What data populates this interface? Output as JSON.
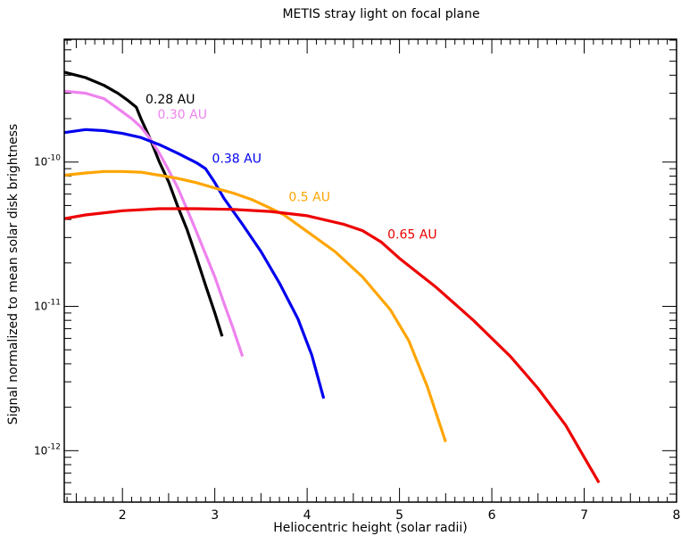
{
  "chart_data": {
    "type": "line",
    "title": "METIS stray light on focal plane",
    "xlabel": "Heliocentric height (solar radii)",
    "ylabel": "Signal normalized to mean solar disk brightness",
    "xlim": [
      1.37,
      8
    ],
    "ylim": [
      4.4e-13,
      7.1e-10
    ],
    "y_scale": "log",
    "x_ticks": [
      2,
      3,
      4,
      5,
      6,
      7,
      8
    ],
    "x_tick_labels": [
      "2",
      "3",
      "4",
      "5",
      "6",
      "7",
      "8"
    ],
    "y_ticks": [
      1e-12,
      1e-11,
      1e-10
    ],
    "y_tick_base": "10",
    "y_tick_exponents": [
      "-12",
      "-11",
      "-10"
    ],
    "grid": false,
    "legend": "none",
    "series": [
      {
        "name": "0.28 AU",
        "color": "#000000",
        "label_at": [
          2.25,
          2.55e-10
        ],
        "x": [
          1.37,
          1.6,
          1.8,
          1.95,
          2.05,
          2.15,
          2.2,
          2.3,
          2.4,
          2.5,
          2.6,
          2.7,
          2.8,
          2.9,
          3.0,
          3.08
        ],
        "y": [
          4.2e-10,
          3.85e-10,
          3.4e-10,
          3e-10,
          2.7e-10,
          2.4e-10,
          2e-10,
          1.45e-10,
          1e-10,
          7.3e-11,
          4.9e-11,
          3.4e-11,
          2.2e-11,
          1.4e-11,
          9e-12,
          6.2e-12
        ]
      },
      {
        "name": "0.30 AU",
        "color": "#ee82ee",
        "label_at": [
          2.38,
          2e-10
        ],
        "x": [
          1.37,
          1.6,
          1.8,
          1.95,
          2.1,
          2.2,
          2.3,
          2.4,
          2.5,
          2.6,
          2.7,
          2.8,
          2.9,
          3.0,
          3.1,
          3.2,
          3.3
        ],
        "y": [
          3.1e-10,
          3e-10,
          2.75e-10,
          2.35e-10,
          2e-10,
          1.75e-10,
          1.45e-10,
          1.15e-10,
          8.8e-11,
          6.6e-11,
          4.7e-11,
          3.3e-11,
          2.3e-11,
          1.6e-11,
          1.05e-11,
          7e-12,
          4.5e-12
        ]
      },
      {
        "name": "0.38 AU",
        "color": "#0000ee",
        "label_at": [
          2.97,
          9.9e-11
        ],
        "x": [
          1.37,
          1.6,
          1.8,
          2.0,
          2.2,
          2.4,
          2.6,
          2.8,
          2.9,
          3.0,
          3.1,
          3.3,
          3.5,
          3.7,
          3.9,
          4.05,
          4.18
        ],
        "y": [
          1.6e-10,
          1.68e-10,
          1.65e-10,
          1.58e-10,
          1.48e-10,
          1.32e-10,
          1.15e-10,
          9.9e-11,
          9e-11,
          7.2e-11,
          5.6e-11,
          3.7e-11,
          2.4e-11,
          1.45e-11,
          8.2e-12,
          4.6e-12,
          2.3e-12
        ]
      },
      {
        "name": "0.5 AU",
        "color": "#ffa500",
        "label_at": [
          3.8,
          5.35e-11
        ],
        "x": [
          1.37,
          1.6,
          1.8,
          2.0,
          2.2,
          2.4,
          2.6,
          2.8,
          3.0,
          3.2,
          3.4,
          3.6,
          3.75,
          4.0,
          4.3,
          4.6,
          4.9,
          5.1,
          5.3,
          5.5
        ],
        "y": [
          8.1e-11,
          8.4e-11,
          8.6e-11,
          8.6e-11,
          8.5e-11,
          8.1e-11,
          7.7e-11,
          7.2e-11,
          6.6e-11,
          6.1e-11,
          5.5e-11,
          4.8e-11,
          4.3e-11,
          3.3e-11,
          2.4e-11,
          1.6e-11,
          9.5e-12,
          5.8e-12,
          2.8e-12,
          1.15e-12
        ]
      },
      {
        "name": "0.65 AU",
        "color": "#ee0000",
        "label_at": [
          4.87,
          2.95e-11
        ],
        "x": [
          1.37,
          1.6,
          2.0,
          2.4,
          2.8,
          3.2,
          3.6,
          4.0,
          4.4,
          4.6,
          4.8,
          5.0,
          5.4,
          5.8,
          6.2,
          6.5,
          6.8,
          7.0,
          7.16
        ],
        "y": [
          4.05e-11,
          4.3e-11,
          4.6e-11,
          4.75e-11,
          4.75e-11,
          4.7e-11,
          4.55e-11,
          4.25e-11,
          3.7e-11,
          3.35e-11,
          2.8e-11,
          2.15e-11,
          1.35e-11,
          8e-12,
          4.5e-12,
          2.7e-12,
          1.5e-12,
          9e-13,
          6e-13
        ]
      }
    ]
  }
}
